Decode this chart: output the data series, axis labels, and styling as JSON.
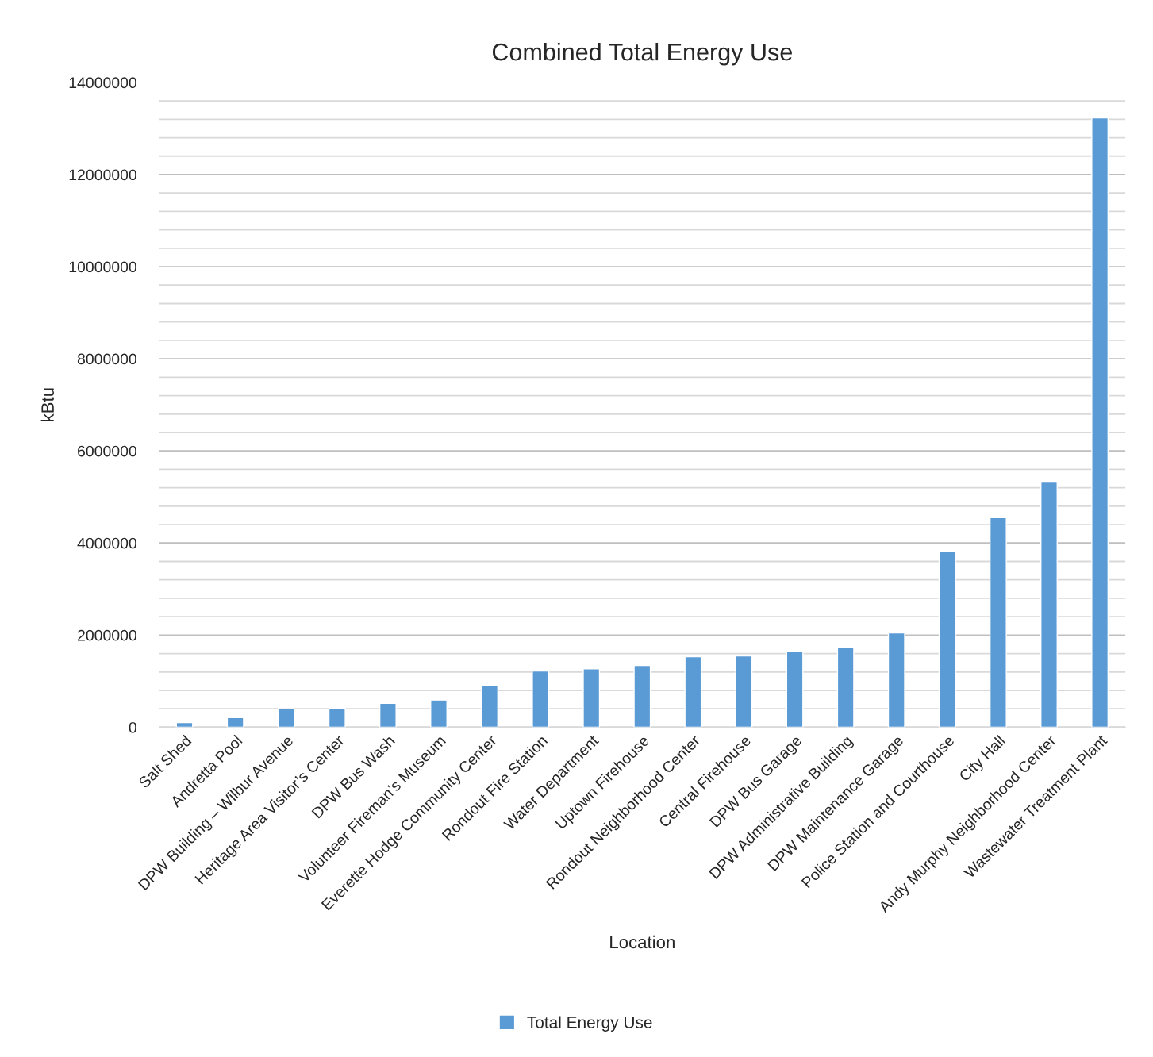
{
  "chart_data": {
    "type": "bar",
    "title": "Combined Total Energy Use",
    "xlabel": "Location",
    "ylabel": "kBtu",
    "categories": [
      "Salt Shed",
      "Andretta Pool",
      "DPW Building – Wilbur Avenue",
      "Heritage Area Visitor’s Center",
      "DPW Bus Wash",
      "Volunteer Fireman’s Museum",
      "Everette Hodge Community Center",
      "Rondout Fire Station",
      "Water Department",
      "Uptown Firehouse",
      "Rondout Neighborhood Center",
      "Central Firehouse",
      "DPW Bus Garage",
      "DPW Administrative Building",
      "DPW Maintenance Garage",
      "Police Station and Courthouse",
      "City Hall",
      "Andy Murphy Neighborhood Center",
      "Wastewater Treatment Plant"
    ],
    "series": [
      {
        "name": "Total Energy Use",
        "color": "#5b9bd5",
        "values": [
          100000,
          210000,
          400000,
          410000,
          520000,
          590000,
          910000,
          1220000,
          1270000,
          1340000,
          1530000,
          1550000,
          1640000,
          1740000,
          2050000,
          3820000,
          4550000,
          5320000,
          13230000
        ]
      }
    ],
    "ylim": [
      0,
      14000000
    ],
    "yticks": [
      0,
      {
        "value": 400000,
        "label": null
      },
      {
        "value": 800000,
        "label": null
      },
      {
        "value": 1200000,
        "label": null
      },
      {
        "value": 1600000,
        "label": null
      },
      2000000,
      {
        "value": 2400000,
        "label": null
      },
      {
        "value": 2800000,
        "label": null
      },
      {
        "value": 3200000,
        "label": null
      },
      {
        "value": 3600000,
        "label": null
      },
      4000000,
      {
        "value": 4400000,
        "label": null
      },
      {
        "value": 4800000,
        "label": null
      },
      {
        "value": 5200000,
        "label": null
      },
      {
        "value": 5600000,
        "label": null
      },
      6000000,
      {
        "value": 6400000,
        "label": null
      },
      {
        "value": 6800000,
        "label": null
      },
      {
        "value": 7200000,
        "label": null
      },
      {
        "value": 7600000,
        "label": null
      },
      8000000,
      {
        "value": 8400000,
        "label": null
      },
      {
        "value": 8800000,
        "label": null
      },
      {
        "value": 9200000,
        "label": null
      },
      {
        "value": 9600000,
        "label": null
      },
      10000000,
      {
        "value": 10400000,
        "label": null
      },
      {
        "value": 10800000,
        "label": null
      },
      {
        "value": 11200000,
        "label": null
      },
      {
        "value": 11600000,
        "label": null
      },
      12000000,
      {
        "value": 12400000,
        "label": null
      },
      {
        "value": 12800000,
        "label": null
      },
      {
        "value": 13200000,
        "label": null
      },
      {
        "value": 13600000,
        "label": null
      },
      14000000
    ],
    "grid": "y",
    "legend": "bottom"
  }
}
